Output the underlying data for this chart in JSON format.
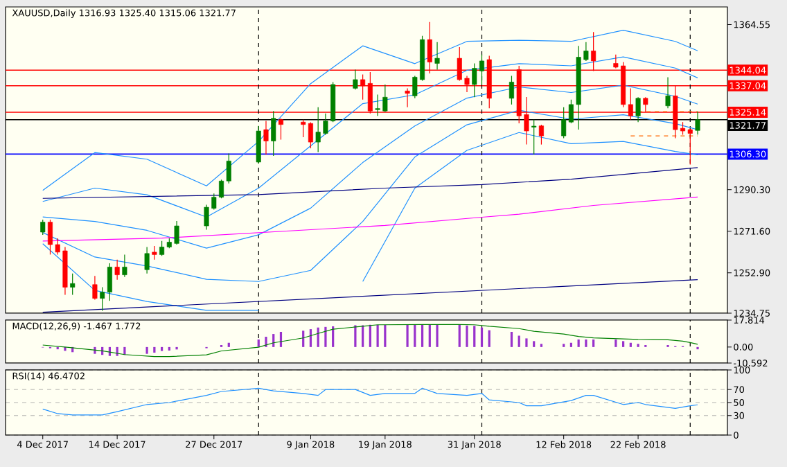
{
  "chart_data": [
    {
      "type": "candlestick",
      "title": "XAUUSD,Daily 1316.93 1325.40 1315.06 1321.77",
      "x": [
        "2017-12-04",
        "2017-12-05",
        "2017-12-06",
        "2017-12-07",
        "2017-12-08",
        "2017-12-11",
        "2017-12-12",
        "2017-12-13",
        "2017-12-14",
        "2017-12-15",
        "2017-12-18",
        "2017-12-19",
        "2017-12-20",
        "2017-12-21",
        "2017-12-22",
        "2017-12-26",
        "2017-12-27",
        "2017-12-28",
        "2017-12-29",
        "2018-01-02",
        "2018-01-03",
        "2018-01-04",
        "2018-01-05",
        "2018-01-08",
        "2018-01-09",
        "2018-01-10",
        "2018-01-11",
        "2018-01-12",
        "2018-01-15",
        "2018-01-16",
        "2018-01-17",
        "2018-01-18",
        "2018-01-19",
        "2018-01-22",
        "2018-01-23",
        "2018-01-24",
        "2018-01-25",
        "2018-01-26",
        "2018-01-29",
        "2018-01-30",
        "2018-01-31",
        "2018-02-01",
        "2018-02-02",
        "2018-02-05",
        "2018-02-06",
        "2018-02-07",
        "2018-02-08",
        "2018-02-09",
        "2018-02-12",
        "2018-02-13",
        "2018-02-14",
        "2018-02-15",
        "2018-02-16",
        "2018-02-19",
        "2018-02-20",
        "2018-02-21",
        "2018-02-22",
        "2018-02-23",
        "2018-02-26",
        "2018-02-27",
        "2018-02-28",
        "2018-03-01",
        "2018-03-02"
      ],
      "ohlc": [
        [
          1271.2,
          1276.8,
          1270.0,
          1275.7
        ],
        [
          1275.7,
          1276.8,
          1261.1,
          1265.6
        ],
        [
          1265.6,
          1268.4,
          1261.1,
          1262.2
        ],
        [
          1262.8,
          1264.5,
          1243.0,
          1246.4
        ],
        [
          1246.4,
          1252.6,
          1243.0,
          1248.1
        ],
        [
          1247.6,
          1251.5,
          1240.8,
          1241.4
        ],
        [
          1241.4,
          1246.4,
          1235.8,
          1244.2
        ],
        [
          1244.2,
          1257.2,
          1240.3,
          1255.5
        ],
        [
          1255.5,
          1258.8,
          1249.8,
          1252.0
        ],
        [
          1252.0,
          1261.1,
          1251.0,
          1255.5
        ],
        [
          1254.3,
          1264.5,
          1252.6,
          1261.6
        ],
        [
          1262.2,
          1265.0,
          1258.8,
          1261.1
        ],
        [
          1261.1,
          1267.2,
          1260.5,
          1264.5
        ],
        [
          1264.5,
          1268.4,
          1264.0,
          1266.7
        ],
        [
          1266.1,
          1276.2,
          1265.6,
          1274.0
        ],
        [
          1274.0,
          1283.5,
          1272.3,
          1282.4
        ],
        [
          1281.9,
          1288.6,
          1281.3,
          1286.9
        ],
        [
          1286.9,
          1294.8,
          1286.4,
          1294.2
        ],
        [
          1294.2,
          1306.6,
          1293.1,
          1303.2
        ],
        [
          1302.7,
          1319.0,
          1302.1,
          1316.7
        ],
        [
          1317.3,
          1321.2,
          1306.0,
          1312.2
        ],
        [
          1312.2,
          1325.7,
          1305.5,
          1322.4
        ],
        [
          1321.8,
          1322.4,
          1312.8,
          1319.6
        ],
        [
          1320.7,
          1321.8,
          1313.9,
          1319.6
        ],
        [
          1320.1,
          1320.6,
          1308.9,
          1311.7
        ],
        [
          1311.7,
          1327.4,
          1307.2,
          1316.2
        ],
        [
          1315.6,
          1324.6,
          1315.0,
          1321.2
        ],
        [
          1321.2,
          1338.7,
          1320.7,
          1337.6
        ],
        [
          1335.9,
          1344.3,
          1335.3,
          1339.8
        ],
        [
          1339.8,
          1342.1,
          1330.8,
          1337.0
        ],
        [
          1338.1,
          1343.2,
          1324.6,
          1325.7
        ],
        [
          1326.3,
          1333.1,
          1323.5,
          1326.8
        ],
        [
          1325.7,
          1337.6,
          1325.2,
          1331.9
        ],
        [
          1334.7,
          1335.9,
          1327.4,
          1333.6
        ],
        [
          1332.5,
          1341.5,
          1331.4,
          1340.9
        ],
        [
          1339.8,
          1359.5,
          1339.3,
          1357.8
        ],
        [
          1357.8,
          1365.7,
          1342.6,
          1347.7
        ],
        [
          1347.1,
          1356.7,
          1344.3,
          1349.4
        ],
        [
          1349.4,
          1354.4,
          1339.3,
          1339.8
        ],
        [
          1340.4,
          1341.5,
          1334.2,
          1337.6
        ],
        [
          1337.6,
          1347.1,
          1331.9,
          1344.9
        ],
        [
          1343.7,
          1351.1,
          1337.6,
          1348.2
        ],
        [
          1348.8,
          1350.5,
          1326.9,
          1331.4
        ],
        [
          1331.4,
          1341.5,
          1328.6,
          1338.7
        ],
        [
          1344.3,
          1346.0,
          1320.1,
          1323.5
        ],
        [
          1324.1,
          1332.0,
          1310.6,
          1316.7
        ],
        [
          1318.4,
          1321.8,
          1306.1,
          1318.9
        ],
        [
          1319.0,
          1319.5,
          1310.6,
          1314.5
        ],
        [
          1314.5,
          1327.4,
          1313.4,
          1321.8
        ],
        [
          1320.7,
          1330.8,
          1320.2,
          1328.6
        ],
        [
          1328.6,
          1355.0,
          1317.3,
          1349.9
        ],
        [
          1348.8,
          1356.7,
          1348.2,
          1352.7
        ],
        [
          1352.7,
          1361.2,
          1343.7,
          1348.2
        ],
        [
          1347.1,
          1351.1,
          1344.9,
          1345.4
        ],
        [
          1346.0,
          1347.7,
          1327.4,
          1328.6
        ],
        [
          1328.6,
          1335.9,
          1321.8,
          1323.5
        ],
        [
          1323.5,
          1331.9,
          1320.7,
          1331.4
        ],
        [
          1331.4,
          1331.9,
          1325.2,
          1328.6
        ],
        [
          1328.0,
          1340.9,
          1326.9,
          1332.5
        ],
        [
          1332.5,
          1337.0,
          1313.4,
          1317.3
        ],
        [
          1317.9,
          1320.7,
          1315.0,
          1316.7
        ],
        [
          1317.3,
          1317.8,
          1301.6,
          1315.6
        ],
        [
          1316.93,
          1325.4,
          1315.06,
          1321.77
        ]
      ],
      "colors": [
        "#008000",
        "#ff0000",
        "#ff0000",
        "#ff0000",
        "#008000",
        "#ff0000",
        "#008000",
        "#008000",
        "#ff0000",
        "#008000",
        "#008000",
        "#ff0000",
        "#008000",
        "#008000",
        "#008000",
        "#008000",
        "#008000",
        "#008000",
        "#008000",
        "#008000",
        "#ff0000",
        "#008000",
        "#ff0000",
        "#ff0000",
        "#ff0000",
        "#008000",
        "#008000",
        "#008000",
        "#008000",
        "#ff0000",
        "#ff0000",
        "#008000",
        "#008000",
        "#ff0000",
        "#008000",
        "#008000",
        "#ff0000",
        "#008000",
        "#ff0000",
        "#ff0000",
        "#008000",
        "#008000",
        "#ff0000",
        "#008000",
        "#ff0000",
        "#ff0000",
        "#008000",
        "#ff0000",
        "#008000",
        "#008000",
        "#008000",
        "#008000",
        "#ff0000",
        "#ff0000",
        "#ff0000",
        "#ff0000",
        "#008000",
        "#ff0000",
        "#008000",
        "#ff0000",
        "#ff0000",
        "#ff0000",
        "#008000"
      ],
      "series": [
        {
          "type": "line",
          "color": "#1e90ff",
          "x": [
            "2017-12-04",
            "2017-12-11",
            "2017-12-18",
            "2017-12-26",
            "2018-01-02",
            "2018-01-09",
            "2018-01-16",
            "2018-01-23",
            "2018-01-30",
            "2018-02-06",
            "2018-02-13",
            "2018-02-20",
            "2018-02-27",
            "2018-03-02"
          ],
          "values": [
            1290,
            1307,
            1304,
            1292,
            1312,
            1338,
            1355,
            1347,
            1357,
            1357.5,
            1357,
            1362,
            1357,
            1352.8
          ]
        },
        {
          "type": "line",
          "color": "#1e90ff",
          "x": [
            "2017-12-04",
            "2017-12-11",
            "2017-12-18",
            "2017-12-26",
            "2018-01-02",
            "2018-01-09",
            "2018-01-16",
            "2018-01-23",
            "2018-01-30",
            "2018-02-06",
            "2018-02-13",
            "2018-02-20",
            "2018-02-27",
            "2018-03-02"
          ],
          "values": [
            1285,
            1291,
            1288,
            1278,
            1291,
            1310,
            1329,
            1333,
            1344,
            1347,
            1346,
            1350,
            1345,
            1340.6
          ]
        },
        {
          "type": "line",
          "color": "#1e90ff",
          "x": [
            "2017-12-04",
            "2017-12-11",
            "2017-12-18",
            "2017-12-26",
            "2018-01-02",
            "2018-01-09",
            "2018-01-16",
            "2018-01-23",
            "2018-01-30",
            "2018-02-06",
            "2018-02-13",
            "2018-02-20",
            "2018-02-27",
            "2018-03-02"
          ],
          "values": [
            1278,
            1276,
            1272,
            1264,
            1270,
            1282,
            1302.5,
            1319,
            1331.5,
            1336.5,
            1334,
            1337.3,
            1332.3,
            1328.8
          ]
        },
        {
          "type": "line",
          "color": "#1e90ff",
          "x": [
            "2017-12-04",
            "2017-12-11",
            "2017-12-18",
            "2017-12-26",
            "2018-01-02",
            "2018-01-09",
            "2018-01-16",
            "2018-01-23",
            "2018-01-30",
            "2018-02-06",
            "2018-02-13",
            "2018-02-20",
            "2018-02-27",
            "2018-03-02"
          ],
          "values": [
            1271,
            1260,
            1256,
            1250,
            1249,
            1254,
            1276,
            1305,
            1319.5,
            1326,
            1322,
            1324,
            1320,
            1317.3
          ]
        },
        {
          "type": "line",
          "color": "#1e90ff",
          "x": [
            "2017-12-04",
            "2017-12-11",
            "2017-12-18",
            "2017-12-26",
            "2018-01-02",
            "2018-01-09",
            "2018-01-16",
            "2018-01-23",
            "2018-01-30",
            "2018-02-06",
            "2018-02-13",
            "2018-02-20",
            "2018-02-27",
            "2018-03-02"
          ],
          "values": [
            1266,
            1245,
            1240,
            1236,
            1236,
            null,
            1249,
            1291,
            1308,
            1316,
            1311,
            1312,
            1307.5,
            1306.0
          ]
        },
        {
          "type": "line",
          "color": "#000080",
          "x": [
            "2017-12-04",
            "2018-01-02",
            "2018-01-19",
            "2018-02-01",
            "2018-02-13",
            "2018-03-02"
          ],
          "values": [
            1286.4,
            1288.1,
            1291.0,
            1292.6,
            1295.0,
            1300.2
          ]
        },
        {
          "type": "line",
          "color": "#ff00ff",
          "x": [
            "2017-12-04",
            "2017-12-20",
            "2018-01-09",
            "2018-01-19",
            "2018-02-01",
            "2018-02-06",
            "2018-02-16",
            "2018-03-02"
          ],
          "values": [
            1267.2,
            1268.5,
            1272.3,
            1274.2,
            1277.9,
            1279.3,
            1283.2,
            1287.0
          ]
        },
        {
          "type": "line",
          "color": "#000080",
          "x": [
            "2017-12-04",
            "2018-03-02"
          ],
          "values": [
            1235.2,
            1249.8
          ]
        },
        {
          "type": "line",
          "color": "#ff6600",
          "line_style": "dashed",
          "x": [
            "2018-02-22",
            "2018-03-02"
          ],
          "values": [
            1325.4,
            1325.4
          ]
        },
        {
          "type": "line",
          "color": "#ff6600",
          "line_style": "dashed",
          "x": [
            "2018-02-21",
            "2018-03-02"
          ],
          "values": [
            1314.5,
            1314.5
          ]
        }
      ],
      "xlim": [
        "2017-11-29",
        "2018-03-06"
      ],
      "ylim": [
        1234.75,
        1372.5
      ],
      "yticks": [
        1364.55,
        {
          "value": 1290.3,
          "label": "1290.30"
        },
        {
          "value": 1271.6,
          "label": "1271.60"
        },
        {
          "value": 1252.9,
          "label": "1252.90"
        },
        1234.75
      ],
      "ref_lines": [
        {
          "axis": "y",
          "value": 1344.04,
          "label": "1344.04",
          "color": "#ff0000"
        },
        {
          "axis": "y",
          "value": 1337.04,
          "label": "1337.04",
          "color": "#ff0000"
        },
        {
          "axis": "y",
          "value": 1325.14,
          "label": "1325.14",
          "color": "#ff0000"
        },
        {
          "axis": "y",
          "value": 1321.77,
          "label": "1321.77",
          "color": "#000000"
        },
        {
          "axis": "y",
          "value": 1306.3,
          "label": "1306.30",
          "color": "#0000ff"
        },
        {
          "axis": "x",
          "value": "2018-01-02",
          "color": "#000000",
          "line_style": "dashed"
        },
        {
          "axis": "x",
          "value": "2018-02-01",
          "color": "#000000",
          "line_style": "dashed"
        },
        {
          "axis": "x",
          "value": "2018-03-01",
          "color": "#000000",
          "line_style": "dashed"
        }
      ],
      "tick_labels": "y"
    },
    {
      "type": "bar",
      "title": "MACD(12,26,9) -1.467 1.772",
      "x": [
        "2017-12-04",
        "2017-12-05",
        "2017-12-06",
        "2017-12-07",
        "2017-12-08",
        "2017-12-11",
        "2017-12-12",
        "2017-12-13",
        "2017-12-14",
        "2017-12-15",
        "2017-12-18",
        "2017-12-19",
        "2017-12-20",
        "2017-12-21",
        "2017-12-22",
        "2017-12-26",
        "2017-12-27",
        "2017-12-28",
        "2017-12-29",
        "2018-01-02",
        "2018-01-03",
        "2018-01-04",
        "2018-01-05",
        "2018-01-08",
        "2018-01-09",
        "2018-01-10",
        "2018-01-11",
        "2018-01-12",
        "2018-01-15",
        "2018-01-16",
        "2018-01-17",
        "2018-01-18",
        "2018-01-19",
        "2018-01-22",
        "2018-01-23",
        "2018-01-24",
        "2018-01-25",
        "2018-01-26",
        "2018-01-29",
        "2018-01-30",
        "2018-01-31",
        "2018-02-01",
        "2018-02-02",
        "2018-02-05",
        "2018-02-06",
        "2018-02-07",
        "2018-02-08",
        "2018-02-09",
        "2018-02-12",
        "2018-02-13",
        "2018-02-14",
        "2018-02-15",
        "2018-02-16",
        "2018-02-19",
        "2018-02-20",
        "2018-02-21",
        "2018-02-22",
        "2018-02-23",
        "2018-02-26",
        "2018-02-27",
        "2018-02-28",
        "2018-03-01",
        "2018-03-02"
      ],
      "series": [
        {
          "type": "bar",
          "color": "#9932cc",
          "values": [
            -0.3,
            -0.8,
            -1.5,
            -2.5,
            -3.4,
            -4.5,
            -5.2,
            -5.9,
            -5.9,
            -5.2,
            -4.5,
            -3.7,
            -2.6,
            -2.3,
            -1.6,
            -0.8,
            null,
            1.3,
            2.8,
            5.0,
            6.8,
            8.6,
            10.0,
            10.8,
            11.8,
            12.9,
            13.3,
            13.7,
            14.4,
            14.4,
            14.7,
            14.7,
            14.6,
            14.6,
            14.7,
            15.0,
            15.0,
            14.9,
            14.6,
            14.2,
            14.0,
            12.9,
            11.1,
            10.0,
            7.5,
            5.7,
            3.9,
            2.1,
            2.1,
            2.8,
            5.0,
            5.0,
            5.0,
            5.0,
            3.9,
            2.8,
            2.1,
            1.3,
            1.3,
            0.6,
            0.6,
            null,
            -1.5
          ]
        },
        {
          "type": "line",
          "color": "#008000",
          "x": [
            "2017-12-04",
            "2017-12-07",
            "2017-12-12",
            "2017-12-15",
            "2017-12-19",
            "2017-12-21",
            "2017-12-26",
            "2017-12-28",
            "2018-01-02",
            "2018-01-04",
            "2018-01-08",
            "2018-01-10",
            "2018-01-12",
            "2018-01-16",
            "2018-01-18",
            "2018-01-24",
            "2018-01-29",
            "2018-01-31",
            "2018-02-02",
            "2018-02-06",
            "2018-02-08",
            "2018-02-12",
            "2018-02-14",
            "2018-02-16",
            "2018-02-20",
            "2018-02-22",
            "2018-02-26",
            "2018-02-28",
            "2018-03-01",
            "2018-03-02"
          ],
          "values": [
            1.3,
            0.0,
            -2.5,
            -5.0,
            -6.3,
            -6.3,
            -5.2,
            -2.6,
            -0.1,
            2.8,
            6.0,
            9.0,
            11.8,
            13.7,
            14.7,
            14.9,
            14.9,
            14.7,
            13.7,
            12.2,
            10.4,
            8.6,
            7.0,
            6.1,
            5.4,
            5.0,
            4.8,
            3.9,
            3.0,
            1.8
          ]
        }
      ],
      "xlim": [
        "2017-11-29",
        "2018-03-06"
      ],
      "ylim": [
        -10.592,
        17.814
      ],
      "yticks": [
        17.814,
        {
          "value": 0,
          "label": "0.00"
        },
        -10.592
      ],
      "ref_lines": [
        {
          "axis": "x",
          "value": "2018-01-02",
          "color": "#000000",
          "line_style": "dashed"
        },
        {
          "axis": "x",
          "value": "2018-02-01",
          "color": "#000000",
          "line_style": "dashed"
        },
        {
          "axis": "x",
          "value": "2018-03-01",
          "color": "#000000",
          "line_style": "dashed"
        }
      ],
      "tick_labels": "y"
    },
    {
      "type": "line",
      "title": "RSI(14) 46.4702",
      "series": [
        {
          "color": "#1e90ff",
          "x": [
            "2017-12-04",
            "2017-12-06",
            "2017-12-08",
            "2017-12-12",
            "2017-12-14",
            "2017-12-18",
            "2017-12-21",
            "2017-12-26",
            "2017-12-28",
            "2018-01-02",
            "2018-01-04",
            "2018-01-08",
            "2018-01-10",
            "2018-01-11",
            "2018-01-15",
            "2018-01-17",
            "2018-01-19",
            "2018-01-23",
            "2018-01-24",
            "2018-01-26",
            "2018-01-30",
            "2018-02-01",
            "2018-02-02",
            "2018-02-06",
            "2018-02-07",
            "2018-02-09",
            "2018-02-13",
            "2018-02-15",
            "2018-02-16",
            "2018-02-20",
            "2018-02-22",
            "2018-02-23",
            "2018-02-27",
            "2018-03-01",
            "2018-03-02"
          ],
          "values": [
            40,
            33,
            31,
            31,
            36,
            47,
            50,
            61,
            67,
            72,
            68,
            64,
            61,
            70,
            70,
            61,
            64,
            64,
            72,
            64,
            61,
            64,
            54,
            50,
            45,
            45,
            53,
            61,
            61,
            47,
            50,
            47,
            41,
            45,
            46.5
          ]
        }
      ],
      "xlim": [
        "2017-11-29",
        "2018-03-06"
      ],
      "ylim": [
        0,
        100
      ],
      "yticks": [
        100,
        70,
        50,
        30,
        0
      ],
      "grid": "y",
      "xticks": [
        {
          "value": "2017-12-04",
          "label": "4 Dec 2017"
        },
        {
          "value": "2017-12-14",
          "label": "14 Dec 2017"
        },
        {
          "value": "2017-12-27",
          "label": "27 Dec 2017"
        },
        {
          "value": "2018-01-09",
          "label": "9 Jan 2018"
        },
        {
          "value": "2018-01-19",
          "label": "19 Jan 2018"
        },
        {
          "value": "2018-01-31",
          "label": "31 Jan 2018"
        },
        {
          "value": "2018-02-12",
          "label": "12 Feb 2018"
        },
        {
          "value": "2018-02-22",
          "label": "22 Feb 2018"
        }
      ],
      "ref_lines": [
        {
          "axis": "x",
          "value": "2018-01-02",
          "color": "#000000",
          "line_style": "dashed"
        },
        {
          "axis": "x",
          "value": "2018-02-01",
          "color": "#000000",
          "line_style": "dashed"
        },
        {
          "axis": "x",
          "value": "2018-03-01",
          "color": "#000000",
          "line_style": "dashed"
        }
      ]
    }
  ]
}
